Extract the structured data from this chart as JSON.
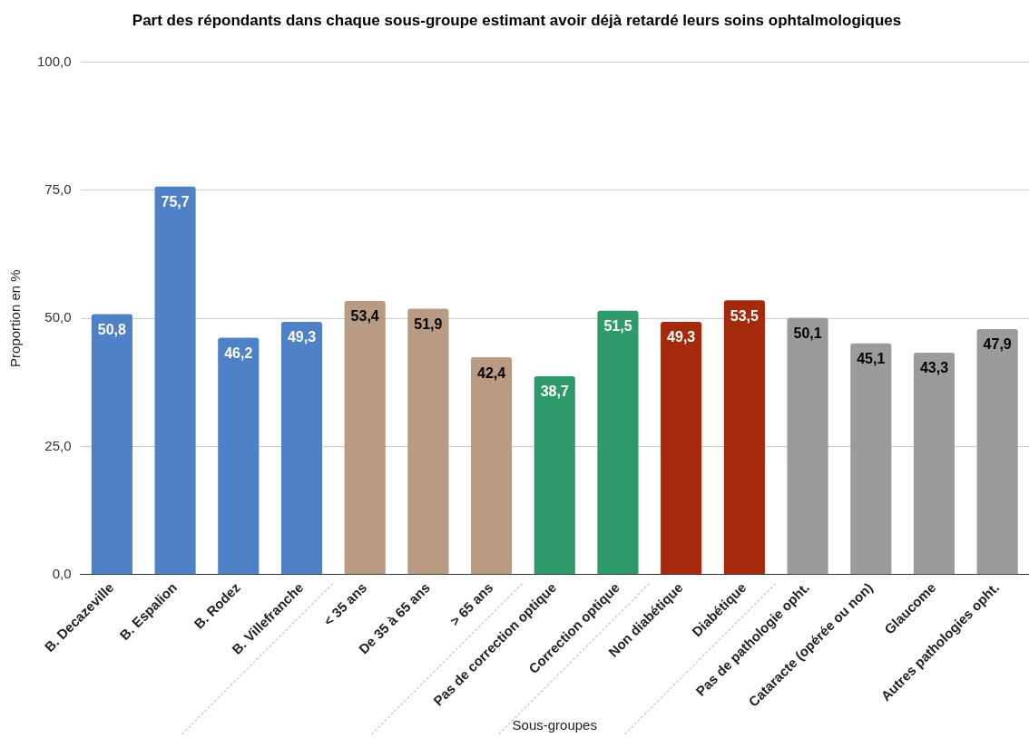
{
  "chart_data": {
    "type": "bar",
    "title": "Part des répondants dans chaque sous-groupe estimant avoir déjà retardé leurs soins ophtalmologiques",
    "xlabel": "Sous-groupes",
    "ylabel": "Proportion en %",
    "categories": [
      "B. Decazeville",
      "B. Espalion",
      "B. Rodez",
      "B. Villefranche",
      "< 35 ans",
      "De 35 à 65 ans",
      "> 65 ans",
      "Pas de correction optique",
      "Correction optique",
      "Non diabétique",
      "Diabétique",
      "Pas de pathologie opht.",
      "Cataracte (opérée ou non)",
      "Glaucome",
      "Autres pathologies opht."
    ],
    "values": [
      50.8,
      75.7,
      46.2,
      49.3,
      53.4,
      51.9,
      42.4,
      38.7,
      51.5,
      49.3,
      53.5,
      50.1,
      45.1,
      43.3,
      47.9
    ],
    "value_labels": [
      "50,8",
      "75,7",
      "46,2",
      "49,3",
      "53,4",
      "51,9",
      "42,4",
      "38,7",
      "51,5",
      "49,3",
      "53,5",
      "50,1",
      "45,1",
      "43,3",
      "47,9"
    ],
    "colors": [
      "#4f81c6",
      "#4f81c6",
      "#4f81c6",
      "#4f81c6",
      "#b99a82",
      "#b99a82",
      "#b99a82",
      "#2f9a69",
      "#2f9a69",
      "#a52a0b",
      "#a52a0b",
      "#9b9b9b",
      "#9b9b9b",
      "#9b9b9b",
      "#9b9b9b"
    ],
    "ylim": [
      0,
      100
    ],
    "yticks": [
      {
        "value": 0,
        "label": "0,0"
      },
      {
        "value": 25,
        "label": "25,0"
      },
      {
        "value": 50,
        "label": "50,0"
      },
      {
        "value": 75,
        "label": "75,0"
      },
      {
        "value": 100,
        "label": "100,0"
      }
    ],
    "grid": "y",
    "legend": false
  }
}
